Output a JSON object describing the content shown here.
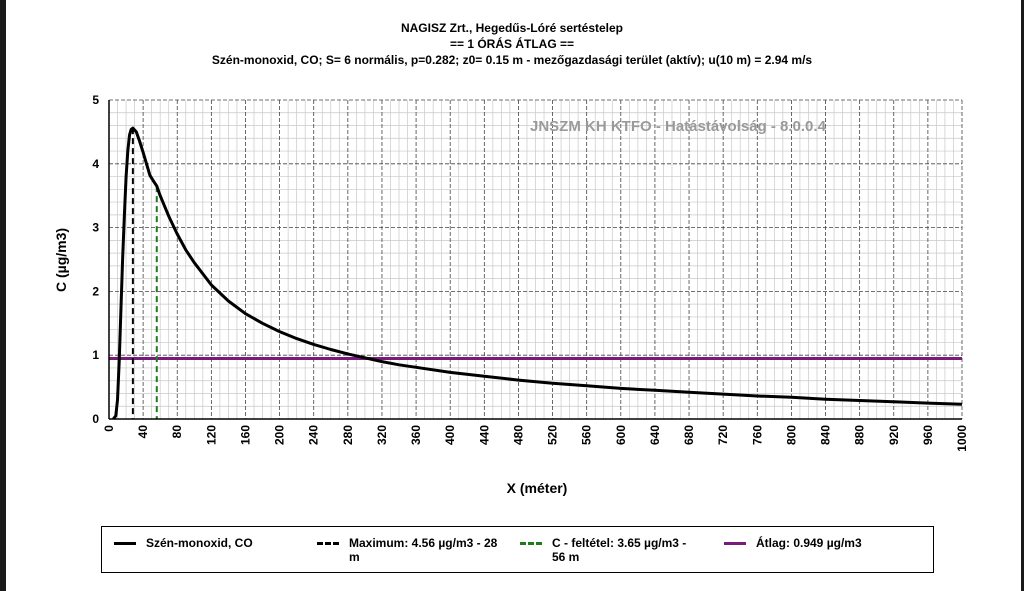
{
  "titles": {
    "line1": "NAGISZ Zrt., Hegedűs-Lóré sertéstelep",
    "line2": "== 1 ÓRÁS ÁTLAG ==",
    "line3": "Szén-monoxid, CO; S= 6 normális, p=0.282; z0= 0.15 m - mezőgazdasági terület (aktív); u(10 m) = 2.94 m/s"
  },
  "watermark": "JNSZM KH KTFO - Hatástávolság  - 8.0.0.4",
  "legend": {
    "series": "Szén-monoxid, CO",
    "maximum": "Maximum: 4.56 µg/m3 - 28 m",
    "condition": "C - feltétel: 3.65 µg/m3 - 56 m",
    "average": "Átlag: 0.949 µg/m3"
  },
  "colors": {
    "curve": "#000000",
    "maximum_line": "#000000",
    "condition_line": "#1e7a1e",
    "average_line": "#7a1a7a",
    "major_grid": "#444444",
    "minor_grid": "#c8c8c8"
  },
  "chart_data": {
    "type": "line",
    "xlabel": "X (méter)",
    "ylabel": "C (µg/m3)",
    "xlim": [
      0,
      1000
    ],
    "ylim": [
      0,
      5
    ],
    "xticks": [
      0,
      40,
      80,
      120,
      160,
      200,
      240,
      280,
      320,
      360,
      400,
      440,
      480,
      520,
      560,
      600,
      640,
      680,
      720,
      760,
      800,
      840,
      880,
      920,
      960,
      1000
    ],
    "yticks": [
      0,
      1,
      2,
      3,
      4,
      5
    ],
    "grid": true,
    "legend_position": "bottom",
    "series": [
      {
        "name": "Szén-monoxid, CO",
        "x": [
          5,
          8,
          10,
          12,
          14,
          16,
          18,
          20,
          22,
          24,
          26,
          28,
          32,
          36,
          40,
          44,
          48,
          52,
          56,
          60,
          70,
          80,
          90,
          100,
          120,
          140,
          160,
          180,
          200,
          220,
          240,
          260,
          280,
          300,
          320,
          340,
          360,
          400,
          440,
          480,
          520,
          560,
          600,
          640,
          680,
          720,
          760,
          800,
          840,
          880,
          920,
          960,
          1000
        ],
        "y": [
          0,
          0.05,
          0.3,
          0.9,
          1.7,
          2.5,
          3.2,
          3.8,
          4.2,
          4.45,
          4.54,
          4.56,
          4.5,
          4.35,
          4.18,
          4.0,
          3.82,
          3.73,
          3.65,
          3.5,
          3.18,
          2.9,
          2.65,
          2.45,
          2.1,
          1.85,
          1.65,
          1.5,
          1.37,
          1.26,
          1.17,
          1.09,
          1.02,
          0.96,
          0.9,
          0.85,
          0.81,
          0.73,
          0.67,
          0.61,
          0.56,
          0.52,
          0.48,
          0.45,
          0.42,
          0.39,
          0.36,
          0.34,
          0.31,
          0.29,
          0.27,
          0.25,
          0.23
        ]
      }
    ],
    "markers": {
      "maximum": {
        "x": 28,
        "y": 4.56
      },
      "condition": {
        "x": 56,
        "y": 3.65
      },
      "average": {
        "y": 0.949
      }
    }
  }
}
